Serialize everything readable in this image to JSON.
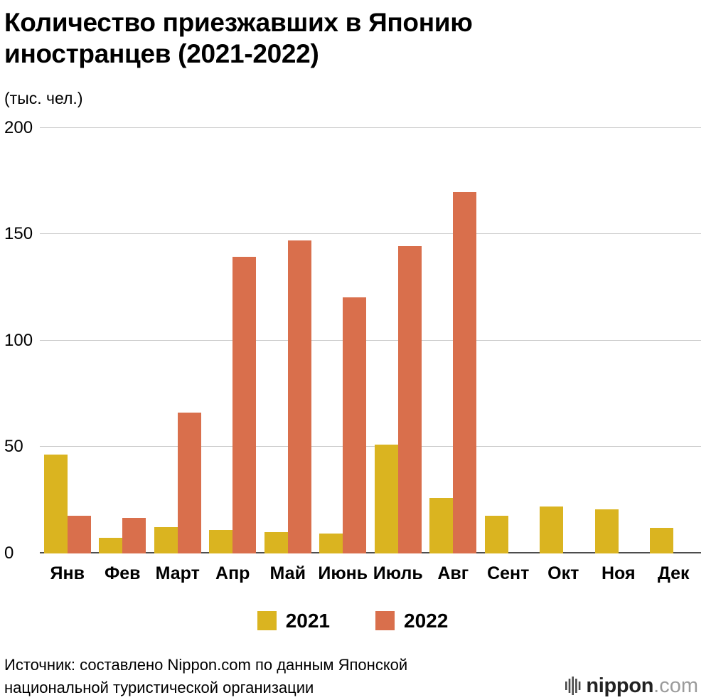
{
  "title": "Количество приезжавших в Японию иностранцев (2021-2022)",
  "unit_label": "(тыс. чел.)",
  "source": "Источник: составлено Nippon.com по данным Японской национальной туристической организации",
  "logo": {
    "name": "nippon",
    "domain": ".com"
  },
  "colors": {
    "series_2021": "#dab420",
    "series_2022": "#d96f4c",
    "gridline": "#c9c9c9",
    "axis": "#4d4d4d"
  },
  "chart_data": {
    "type": "bar",
    "title": "Количество приезжавших в Японию иностранцев (2021-2022)",
    "ylabel": "(тыс. чел.)",
    "xlabel": "",
    "ylim": [
      0,
      200
    ],
    "yticks": [
      0,
      50,
      100,
      150,
      200
    ],
    "grid": true,
    "legend_position": "bottom",
    "categories": [
      "Янв",
      "Фев",
      "Март",
      "Апр",
      "Май",
      "Июнь",
      "Июль",
      "Авг",
      "Сент",
      "Окт",
      "Ноя",
      "Дек"
    ],
    "series": [
      {
        "name": "2021",
        "color": "#dab420",
        "values": [
          46.5,
          7.4,
          12.3,
          10.9,
          10.0,
          9.3,
          51.1,
          25.9,
          17.7,
          22.1,
          20.7,
          12.1
        ]
      },
      {
        "name": "2022",
        "color": "#d96f4c",
        "values": [
          17.8,
          16.7,
          66.1,
          139.5,
          147.0,
          120.4,
          144.5,
          169.8,
          null,
          null,
          null,
          null
        ]
      }
    ]
  }
}
